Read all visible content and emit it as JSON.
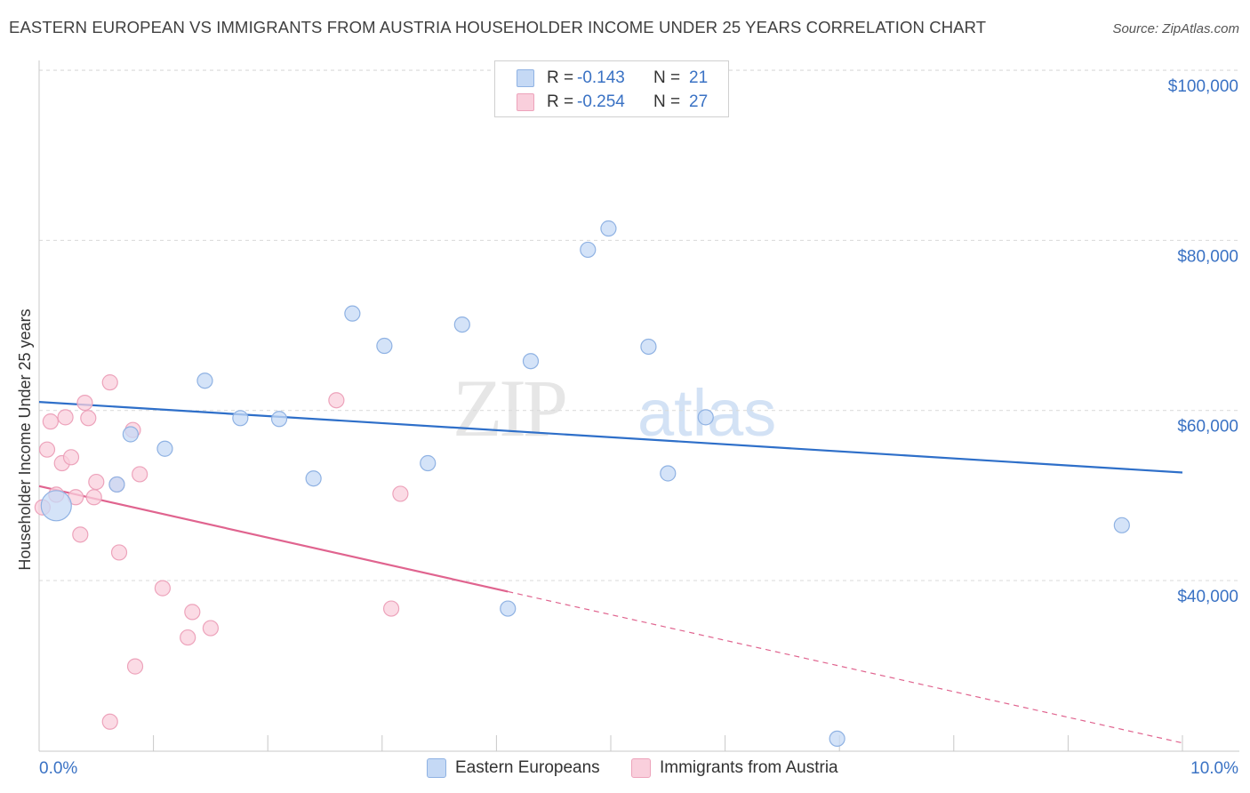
{
  "header": {
    "title": "EASTERN EUROPEAN VS IMMIGRANTS FROM AUSTRIA HOUSEHOLDER INCOME UNDER 25 YEARS CORRELATION CHART",
    "source": "Source: ZipAtlas.com"
  },
  "legend": {
    "series1": {
      "r_label": "R =",
      "r_value": "-0.143",
      "n_label": "N =",
      "n_value": "21"
    },
    "series2": {
      "r_label": "R =",
      "r_value": "-0.254",
      "n_label": "N =",
      "n_value": "27"
    }
  },
  "bottom_legend": {
    "series1": "Eastern Europeans",
    "series2": "Immigrants from Austria"
  },
  "watermark": {
    "part1": "ZIP",
    "part2": "atlas"
  },
  "colors": {
    "blue_fill": "#c5d9f5",
    "blue_stroke": "#8fb2e3",
    "blue_line": "#2e6fc9",
    "pink_fill": "#f9cfdc",
    "pink_stroke": "#eda3bb",
    "pink_line": "#e0648f",
    "tick_label": "#3a72c4",
    "grid": "#d9d9d9"
  },
  "chart_data": {
    "type": "scatter",
    "title": "EASTERN EUROPEAN VS IMMIGRANTS FROM AUSTRIA HOUSEHOLDER INCOME UNDER 25 YEARS CORRELATION CHART",
    "xlabel": "",
    "ylabel": "Householder Income Under 25 years",
    "xlim": [
      0,
      10
    ],
    "ylim": [
      20000,
      102000
    ],
    "x_tick_labels": [
      "0.0%",
      "10.0%"
    ],
    "y_ticks": [
      40000,
      60000,
      80000,
      100000
    ],
    "y_tick_labels": [
      "$40,000",
      "$60,000",
      "$80,000",
      "$100,000"
    ],
    "grid": true,
    "series": [
      {
        "name": "Eastern Europeans",
        "r": -0.143,
        "n": 21,
        "trend": {
          "x": [
            0,
            10
          ],
          "y": [
            61000,
            52700
          ]
        },
        "points": [
          {
            "x": 0.15,
            "y": 48800,
            "big": true
          },
          {
            "x": 0.68,
            "y": 51300
          },
          {
            "x": 0.8,
            "y": 57200
          },
          {
            "x": 1.1,
            "y": 55500
          },
          {
            "x": 1.45,
            "y": 63500
          },
          {
            "x": 1.76,
            "y": 59100
          },
          {
            "x": 2.1,
            "y": 59000
          },
          {
            "x": 2.4,
            "y": 52000
          },
          {
            "x": 2.74,
            "y": 71400
          },
          {
            "x": 3.02,
            "y": 67600
          },
          {
            "x": 3.4,
            "y": 53800
          },
          {
            "x": 3.7,
            "y": 70100
          },
          {
            "x": 4.1,
            "y": 36700
          },
          {
            "x": 4.3,
            "y": 65800
          },
          {
            "x": 4.8,
            "y": 78900
          },
          {
            "x": 4.98,
            "y": 81400
          },
          {
            "x": 5.33,
            "y": 67500
          },
          {
            "x": 5.5,
            "y": 52600
          },
          {
            "x": 5.83,
            "y": 59200
          },
          {
            "x": 6.98,
            "y": 21400
          },
          {
            "x": 9.47,
            "y": 46500
          }
        ]
      },
      {
        "name": "Immigrants from Austria",
        "r": -0.254,
        "n": 27,
        "trend": {
          "x": [
            0,
            4.1
          ],
          "y": [
            51100,
            38700
          ]
        },
        "trend_dashed": {
          "x": [
            4.1,
            10
          ],
          "y": [
            38700,
            20900
          ]
        },
        "points": [
          {
            "x": 0.03,
            "y": 48600
          },
          {
            "x": 0.07,
            "y": 55400
          },
          {
            "x": 0.1,
            "y": 58700
          },
          {
            "x": 0.15,
            "y": 50100
          },
          {
            "x": 0.2,
            "y": 53800
          },
          {
            "x": 0.23,
            "y": 59200
          },
          {
            "x": 0.28,
            "y": 54500
          },
          {
            "x": 0.32,
            "y": 49800
          },
          {
            "x": 0.36,
            "y": 45400
          },
          {
            "x": 0.4,
            "y": 60900
          },
          {
            "x": 0.43,
            "y": 59100
          },
          {
            "x": 0.48,
            "y": 49800
          },
          {
            "x": 0.5,
            "y": 51600
          },
          {
            "x": 0.62,
            "y": 63300
          },
          {
            "x": 0.68,
            "y": 51300
          },
          {
            "x": 0.7,
            "y": 43300
          },
          {
            "x": 0.82,
            "y": 57700
          },
          {
            "x": 0.84,
            "y": 29900
          },
          {
            "x": 0.88,
            "y": 52500
          },
          {
            "x": 1.08,
            "y": 39100
          },
          {
            "x": 1.3,
            "y": 33300
          },
          {
            "x": 1.34,
            "y": 36300
          },
          {
            "x": 1.5,
            "y": 34400
          },
          {
            "x": 0.62,
            "y": 23400
          },
          {
            "x": 2.6,
            "y": 61200
          },
          {
            "x": 3.08,
            "y": 36700
          },
          {
            "x": 3.16,
            "y": 50200
          }
        ]
      }
    ]
  }
}
